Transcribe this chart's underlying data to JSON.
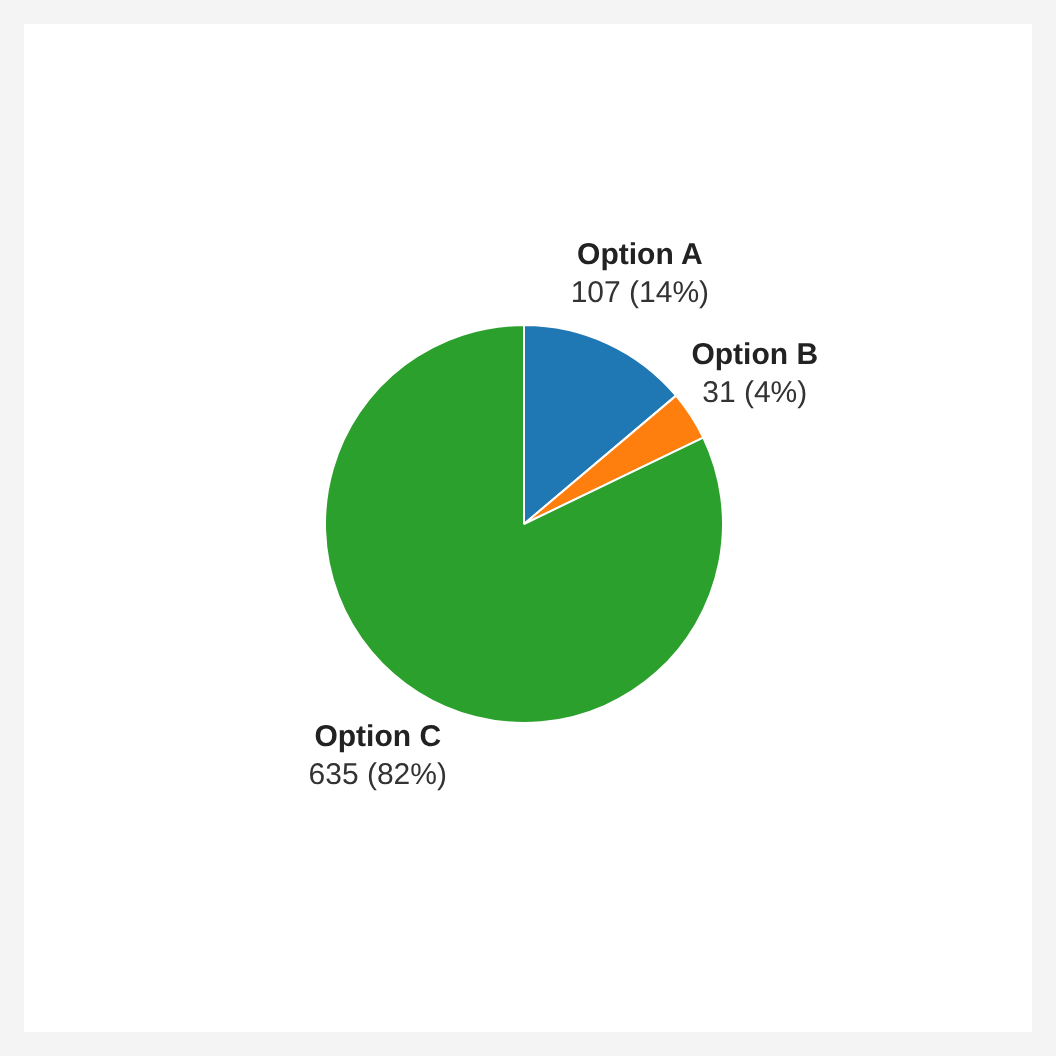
{
  "chart_data": {
    "type": "pie",
    "categories": [
      "Option A",
      "Option B",
      "Option C"
    ],
    "values": [
      107,
      31,
      635
    ],
    "colors": [
      "#1f77b4",
      "#ff7f0e",
      "#2ca02c"
    ],
    "value_labels": [
      "107 (14%)",
      "31 (4%)",
      "635 (82%)"
    ]
  }
}
